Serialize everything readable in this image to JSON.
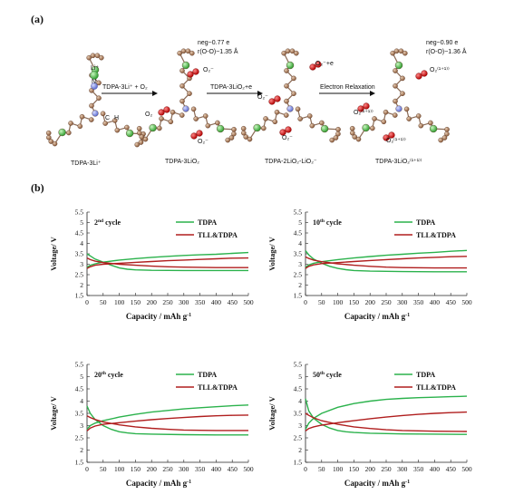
{
  "panel_a": {
    "label": "(a)",
    "structures": [
      {
        "name": "TDPA-3Li⁺",
        "atoms": [
          "Li⁺",
          "N",
          "C",
          "H"
        ]
      },
      {
        "name": "TDPA-3LiO₂",
        "atoms": [
          "O₂",
          "O₂⁻",
          "O₂⁻"
        ],
        "annotation": [
          "neg~0.77 e",
          "r(O-O)~1.35 Å"
        ]
      },
      {
        "name": "TDPA-2LiO₂-LiO₂⁻",
        "atoms": [
          "O₂⁻+e",
          "O₂⁻",
          "O₂⁻"
        ]
      },
      {
        "name": "TDPA-3LiO₂⁽¹⁺¹⁾⁾",
        "atoms": [
          "O₂⁽¹⁺¹⁾⁾",
          "O₂⁽¹⁺¹⁾⁾",
          "O₂⁽¹⁺¹⁾⁾"
        ],
        "annotation": [
          "neg~0.90 e",
          "r(O-O)~1.36 Å"
        ]
      }
    ],
    "arrows": [
      "TDPA-3Li⁺ + O₂",
      "TDPA-3LiO₂+e",
      "Electron Relaxation"
    ]
  },
  "panel_b": {
    "label": "(b)"
  },
  "colors": {
    "tdpa": "#2bb24c",
    "tll": "#b01e1e",
    "axis": "#222222"
  },
  "chart_data": [
    {
      "type": "line",
      "cycle": "2",
      "cycle_sup": "nd",
      "cycle_suffix": " cycle",
      "xlabel": "Capacity / mAh g",
      "xlabel_sup": "-1",
      "ylabel": "Voltage/ V",
      "xlim": [
        0,
        500
      ],
      "ylim": [
        1.5,
        5.5
      ],
      "xticks": [
        0,
        50,
        100,
        150,
        200,
        250,
        300,
        350,
        400,
        450,
        500
      ],
      "yticks": [
        1.5,
        2,
        2.5,
        3,
        3.5,
        4,
        4.5,
        5,
        5.5
      ],
      "series": [
        {
          "name": "TDPA",
          "branch": "charge",
          "x": [
            0,
            10,
            25,
            50,
            100,
            150,
            200,
            250,
            300,
            350,
            400,
            450,
            500
          ],
          "y": [
            2.85,
            2.95,
            3.02,
            3.1,
            3.2,
            3.27,
            3.33,
            3.38,
            3.42,
            3.45,
            3.48,
            3.52,
            3.56
          ]
        },
        {
          "name": "TDPA",
          "branch": "discharge",
          "x": [
            0,
            10,
            25,
            50,
            75,
            100,
            125,
            150,
            200,
            300,
            400,
            500
          ],
          "y": [
            3.5,
            3.4,
            3.25,
            3.1,
            2.95,
            2.82,
            2.76,
            2.73,
            2.71,
            2.7,
            2.7,
            2.7
          ]
        },
        {
          "name": "TLL&TDPA",
          "branch": "charge",
          "x": [
            0,
            10,
            25,
            50,
            100,
            150,
            200,
            250,
            300,
            350,
            400,
            450,
            500
          ],
          "y": [
            2.8,
            2.88,
            2.95,
            3.0,
            3.05,
            3.09,
            3.13,
            3.17,
            3.2,
            3.23,
            3.26,
            3.29,
            3.3
          ]
        },
        {
          "name": "TLL&TDPA",
          "branch": "discharge",
          "x": [
            0,
            10,
            25,
            50,
            100,
            150,
            200,
            250,
            300,
            400,
            500
          ],
          "y": [
            3.3,
            3.22,
            3.15,
            3.08,
            3.0,
            2.95,
            2.91,
            2.88,
            2.86,
            2.84,
            2.84
          ]
        }
      ]
    },
    {
      "type": "line",
      "cycle": "10",
      "cycle_sup": "th",
      "cycle_suffix": " cycle",
      "xlabel": "Capacity / mAh g",
      "xlabel_sup": "-1",
      "ylabel": "Voltage/ V",
      "xlim": [
        0,
        500
      ],
      "ylim": [
        1.5,
        5.5
      ],
      "xticks": [
        0,
        50,
        100,
        150,
        200,
        250,
        300,
        350,
        400,
        450,
        500
      ],
      "yticks": [
        1.5,
        2,
        2.5,
        3,
        3.5,
        4,
        4.5,
        5,
        5.5
      ],
      "series": [
        {
          "name": "TDPA",
          "branch": "charge",
          "x": [
            0,
            10,
            25,
            50,
            100,
            150,
            200,
            250,
            300,
            350,
            400,
            450,
            500
          ],
          "y": [
            2.85,
            2.97,
            3.05,
            3.12,
            3.22,
            3.3,
            3.37,
            3.43,
            3.48,
            3.53,
            3.57,
            3.62,
            3.66
          ]
        },
        {
          "name": "TDPA",
          "branch": "discharge",
          "x": [
            0,
            10,
            25,
            50,
            75,
            100,
            125,
            150,
            200,
            300,
            400,
            500
          ],
          "y": [
            3.65,
            3.45,
            3.25,
            3.05,
            2.9,
            2.8,
            2.74,
            2.7,
            2.67,
            2.65,
            2.64,
            2.64
          ]
        },
        {
          "name": "TLL&TDPA",
          "branch": "charge",
          "x": [
            0,
            10,
            25,
            50,
            100,
            150,
            200,
            250,
            300,
            350,
            400,
            450,
            500
          ],
          "y": [
            2.8,
            2.9,
            2.97,
            3.03,
            3.08,
            3.13,
            3.18,
            3.22,
            3.26,
            3.3,
            3.33,
            3.36,
            3.38
          ]
        },
        {
          "name": "TLL&TDPA",
          "branch": "discharge",
          "x": [
            0,
            10,
            25,
            50,
            100,
            150,
            200,
            250,
            300,
            400,
            500
          ],
          "y": [
            3.35,
            3.28,
            3.2,
            3.12,
            3.02,
            2.95,
            2.9,
            2.86,
            2.84,
            2.82,
            2.82
          ]
        }
      ]
    },
    {
      "type": "line",
      "cycle": "20",
      "cycle_sup": "th",
      "cycle_suffix": " cycle",
      "xlabel": "Capacity / mAh g",
      "xlabel_sup": "-1",
      "ylabel": "Voltage/ V",
      "xlim": [
        0,
        500
      ],
      "ylim": [
        1.5,
        5.5
      ],
      "xticks": [
        0,
        50,
        100,
        150,
        200,
        250,
        300,
        350,
        400,
        450,
        500
      ],
      "yticks": [
        1.5,
        2,
        2.5,
        3,
        3.5,
        4,
        4.5,
        5,
        5.5
      ],
      "series": [
        {
          "name": "TDPA",
          "branch": "charge",
          "x": [
            0,
            10,
            25,
            50,
            100,
            150,
            200,
            250,
            300,
            350,
            400,
            450,
            500
          ],
          "y": [
            2.85,
            3.0,
            3.1,
            3.2,
            3.35,
            3.46,
            3.55,
            3.62,
            3.68,
            3.73,
            3.77,
            3.81,
            3.84
          ]
        },
        {
          "name": "TDPA",
          "branch": "discharge",
          "x": [
            0,
            10,
            25,
            50,
            75,
            100,
            125,
            150,
            200,
            300,
            400,
            500
          ],
          "y": [
            3.8,
            3.5,
            3.25,
            3.0,
            2.85,
            2.75,
            2.7,
            2.67,
            2.65,
            2.63,
            2.62,
            2.62
          ]
        },
        {
          "name": "TLL&TDPA",
          "branch": "charge",
          "x": [
            0,
            10,
            25,
            50,
            100,
            150,
            200,
            250,
            300,
            350,
            400,
            450,
            500
          ],
          "y": [
            2.78,
            2.9,
            2.98,
            3.05,
            3.12,
            3.18,
            3.24,
            3.29,
            3.33,
            3.37,
            3.4,
            3.42,
            3.43
          ]
        },
        {
          "name": "TLL&TDPA",
          "branch": "discharge",
          "x": [
            0,
            10,
            25,
            50,
            100,
            150,
            200,
            250,
            300,
            400,
            500
          ],
          "y": [
            3.4,
            3.33,
            3.25,
            3.15,
            3.03,
            2.95,
            2.89,
            2.85,
            2.82,
            2.8,
            2.8
          ]
        }
      ]
    },
    {
      "type": "line",
      "cycle": "50",
      "cycle_sup": "th",
      "cycle_suffix": " cycle",
      "xlabel": "Capacity / mAh g",
      "xlabel_sup": "-1",
      "ylabel": "Voltage/ V",
      "xlim": [
        0,
        500
      ],
      "ylim": [
        1.5,
        5.5
      ],
      "xticks": [
        0,
        50,
        100,
        150,
        200,
        250,
        300,
        350,
        400,
        450,
        500
      ],
      "yticks": [
        1.5,
        2,
        2.5,
        3,
        3.5,
        4,
        4.5,
        5,
        5.5
      ],
      "series": [
        {
          "name": "TDPA",
          "branch": "charge",
          "x": [
            0,
            10,
            25,
            50,
            100,
            150,
            200,
            250,
            300,
            350,
            400,
            450,
            500
          ],
          "y": [
            2.85,
            3.1,
            3.3,
            3.5,
            3.75,
            3.9,
            4.0,
            4.07,
            4.11,
            4.14,
            4.16,
            4.18,
            4.2
          ]
        },
        {
          "name": "TDPA",
          "branch": "discharge",
          "x": [
            0,
            10,
            25,
            50,
            75,
            100,
            125,
            150,
            200,
            300,
            400,
            500
          ],
          "y": [
            4.1,
            3.6,
            3.3,
            3.05,
            2.9,
            2.8,
            2.75,
            2.72,
            2.69,
            2.66,
            2.65,
            2.64
          ]
        },
        {
          "name": "TLL&TDPA",
          "branch": "charge",
          "x": [
            0,
            10,
            25,
            50,
            100,
            150,
            200,
            250,
            300,
            350,
            400,
            450,
            500
          ],
          "y": [
            2.78,
            2.88,
            2.95,
            3.02,
            3.12,
            3.2,
            3.28,
            3.35,
            3.41,
            3.46,
            3.5,
            3.53,
            3.55
          ]
        },
        {
          "name": "TLL&TDPA",
          "branch": "discharge",
          "x": [
            0,
            10,
            25,
            50,
            100,
            150,
            200,
            250,
            300,
            400,
            500
          ],
          "y": [
            3.5,
            3.42,
            3.32,
            3.2,
            3.05,
            2.95,
            2.88,
            2.83,
            2.8,
            2.77,
            2.76
          ]
        }
      ]
    }
  ]
}
